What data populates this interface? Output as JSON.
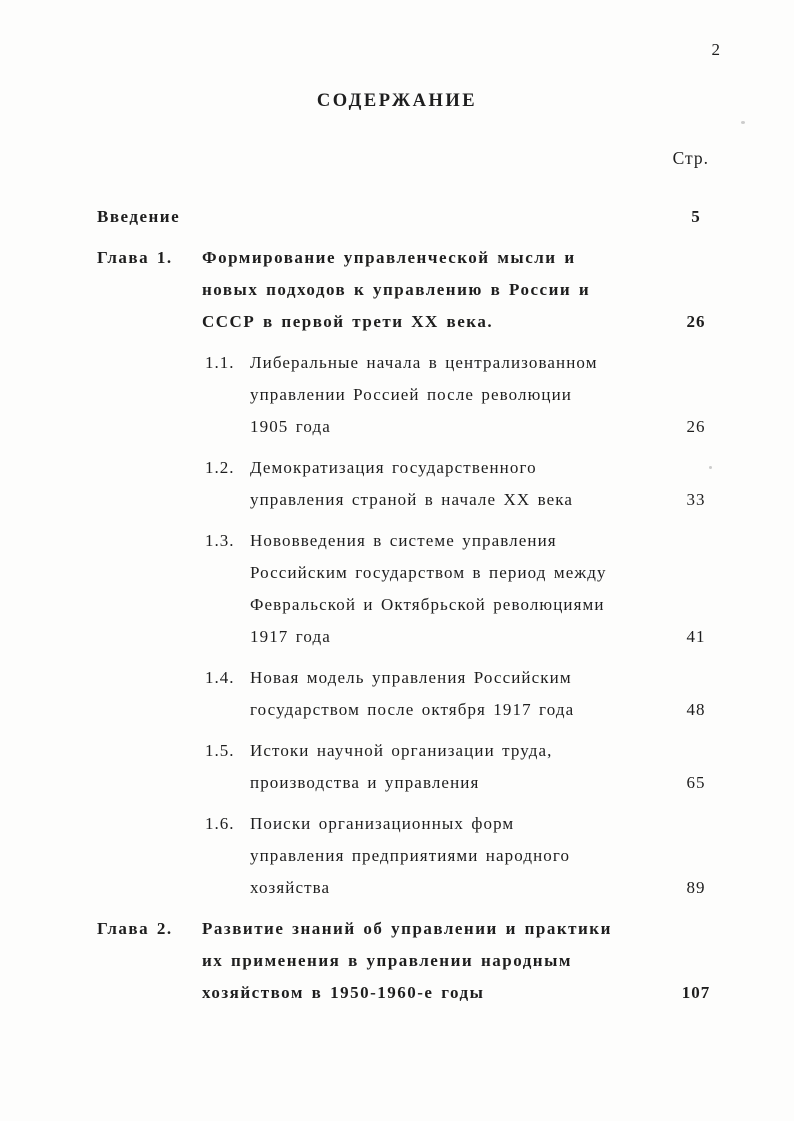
{
  "page": {
    "number": "2",
    "title": "СОДЕРЖАНИЕ",
    "column_header": "Стр."
  },
  "toc": {
    "entries": [
      {
        "type": "intro",
        "label": "Введение",
        "lines": [],
        "page": "5"
      },
      {
        "type": "chapter",
        "label": "Глава 1.",
        "lines": [
          "Формирование управленческой мысли и",
          "новых подходов к управлению в России и",
          "СССР в первой трети XX века."
        ],
        "page": "26"
      },
      {
        "type": "section",
        "label": "1.1.",
        "lines": [
          "Либеральные начала в централизованном",
          "управлении Россией после революции",
          "1905 года"
        ],
        "page": "26"
      },
      {
        "type": "section",
        "label": "1.2.",
        "lines": [
          "Демократизация государственного",
          "управления страной в начале XX века"
        ],
        "page": "33"
      },
      {
        "type": "section",
        "label": "1.3.",
        "lines": [
          "Нововведения в системе управления",
          "Российским государством в период между",
          "Февральской и Октябрьской революциями",
          "1917 года"
        ],
        "page": "41"
      },
      {
        "type": "section",
        "label": "1.4.",
        "lines": [
          "Новая модель управления Российским",
          "государством после октября 1917 года"
        ],
        "page": "48"
      },
      {
        "type": "section",
        "label": "1.5.",
        "lines": [
          "Истоки научной организации труда,",
          "производства и управления"
        ],
        "page": "65"
      },
      {
        "type": "section",
        "label": "1.6.",
        "lines": [
          "Поиски организационных форм",
          "управления предприятиями народного",
          "хозяйства"
        ],
        "page": "89"
      },
      {
        "type": "chapter",
        "label": "Глава 2.",
        "lines": [
          "Развитие знаний об управлении и практики",
          "их применения в управлении народным",
          "хозяйством в 1950-1960-е годы"
        ],
        "page": "107"
      }
    ]
  }
}
